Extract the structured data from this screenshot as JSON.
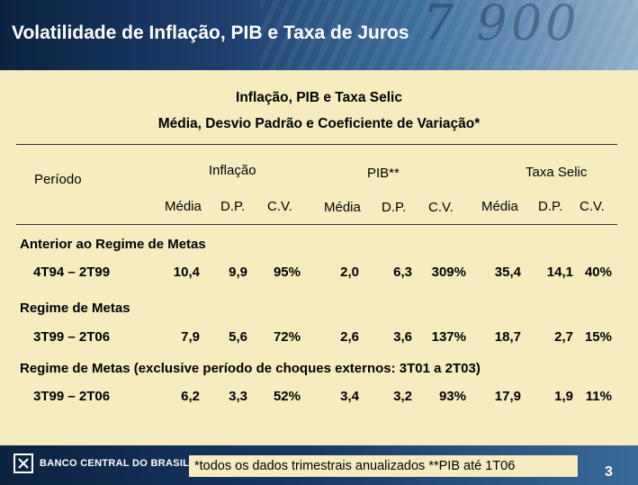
{
  "title": "Volatilidade de Inflação, PIB e Taxa de Juros",
  "subtitle": "Inflação, PIB e Taxa Selic",
  "subtitle2": "Média, Desvio Padrão e Coeficiente de Variação*",
  "period_label": "Período",
  "groups": [
    "Inflação",
    "PIB**",
    "Taxa Selic"
  ],
  "subheaders": [
    "Média",
    "D.P.",
    "C.V."
  ],
  "sections": [
    {
      "label": "Anterior ao Regime de Metas",
      "rows": [
        {
          "period": "4T94 – 2T99",
          "values": [
            "10,4",
            "9,9",
            "95%",
            "2,0",
            "6,3",
            "309%",
            "35,4",
            "14,1",
            "40%"
          ]
        }
      ]
    },
    {
      "label": "Regime de Metas",
      "rows": [
        {
          "period": "3T99 – 2T06",
          "values": [
            "7,9",
            "5,6",
            "72%",
            "2,6",
            "3,6",
            "137%",
            "18,7",
            "2,7",
            "15%"
          ]
        }
      ]
    },
    {
      "label": "Regime de Metas (exclusive período de choques externos: 3T01 a 2T03)",
      "rows": [
        {
          "period": "3T99 – 2T06",
          "values": [
            "6,2",
            "3,3",
            "52%",
            "3,4",
            "3,2",
            "93%",
            "17,9",
            "1,9",
            "11%"
          ]
        }
      ]
    }
  ],
  "footer": {
    "logo_text": "BANCO CENTRAL DO BRASIL",
    "footnote": "*todos os dados trimestrais anualizados **PIB até 1T06",
    "page_number": "3"
  },
  "colors": {
    "background": "#f6ecc0",
    "header": "#1c3f6e",
    "title_text": "#ffffff"
  },
  "icons": {
    "logo": "banco-central-logo-icon"
  }
}
